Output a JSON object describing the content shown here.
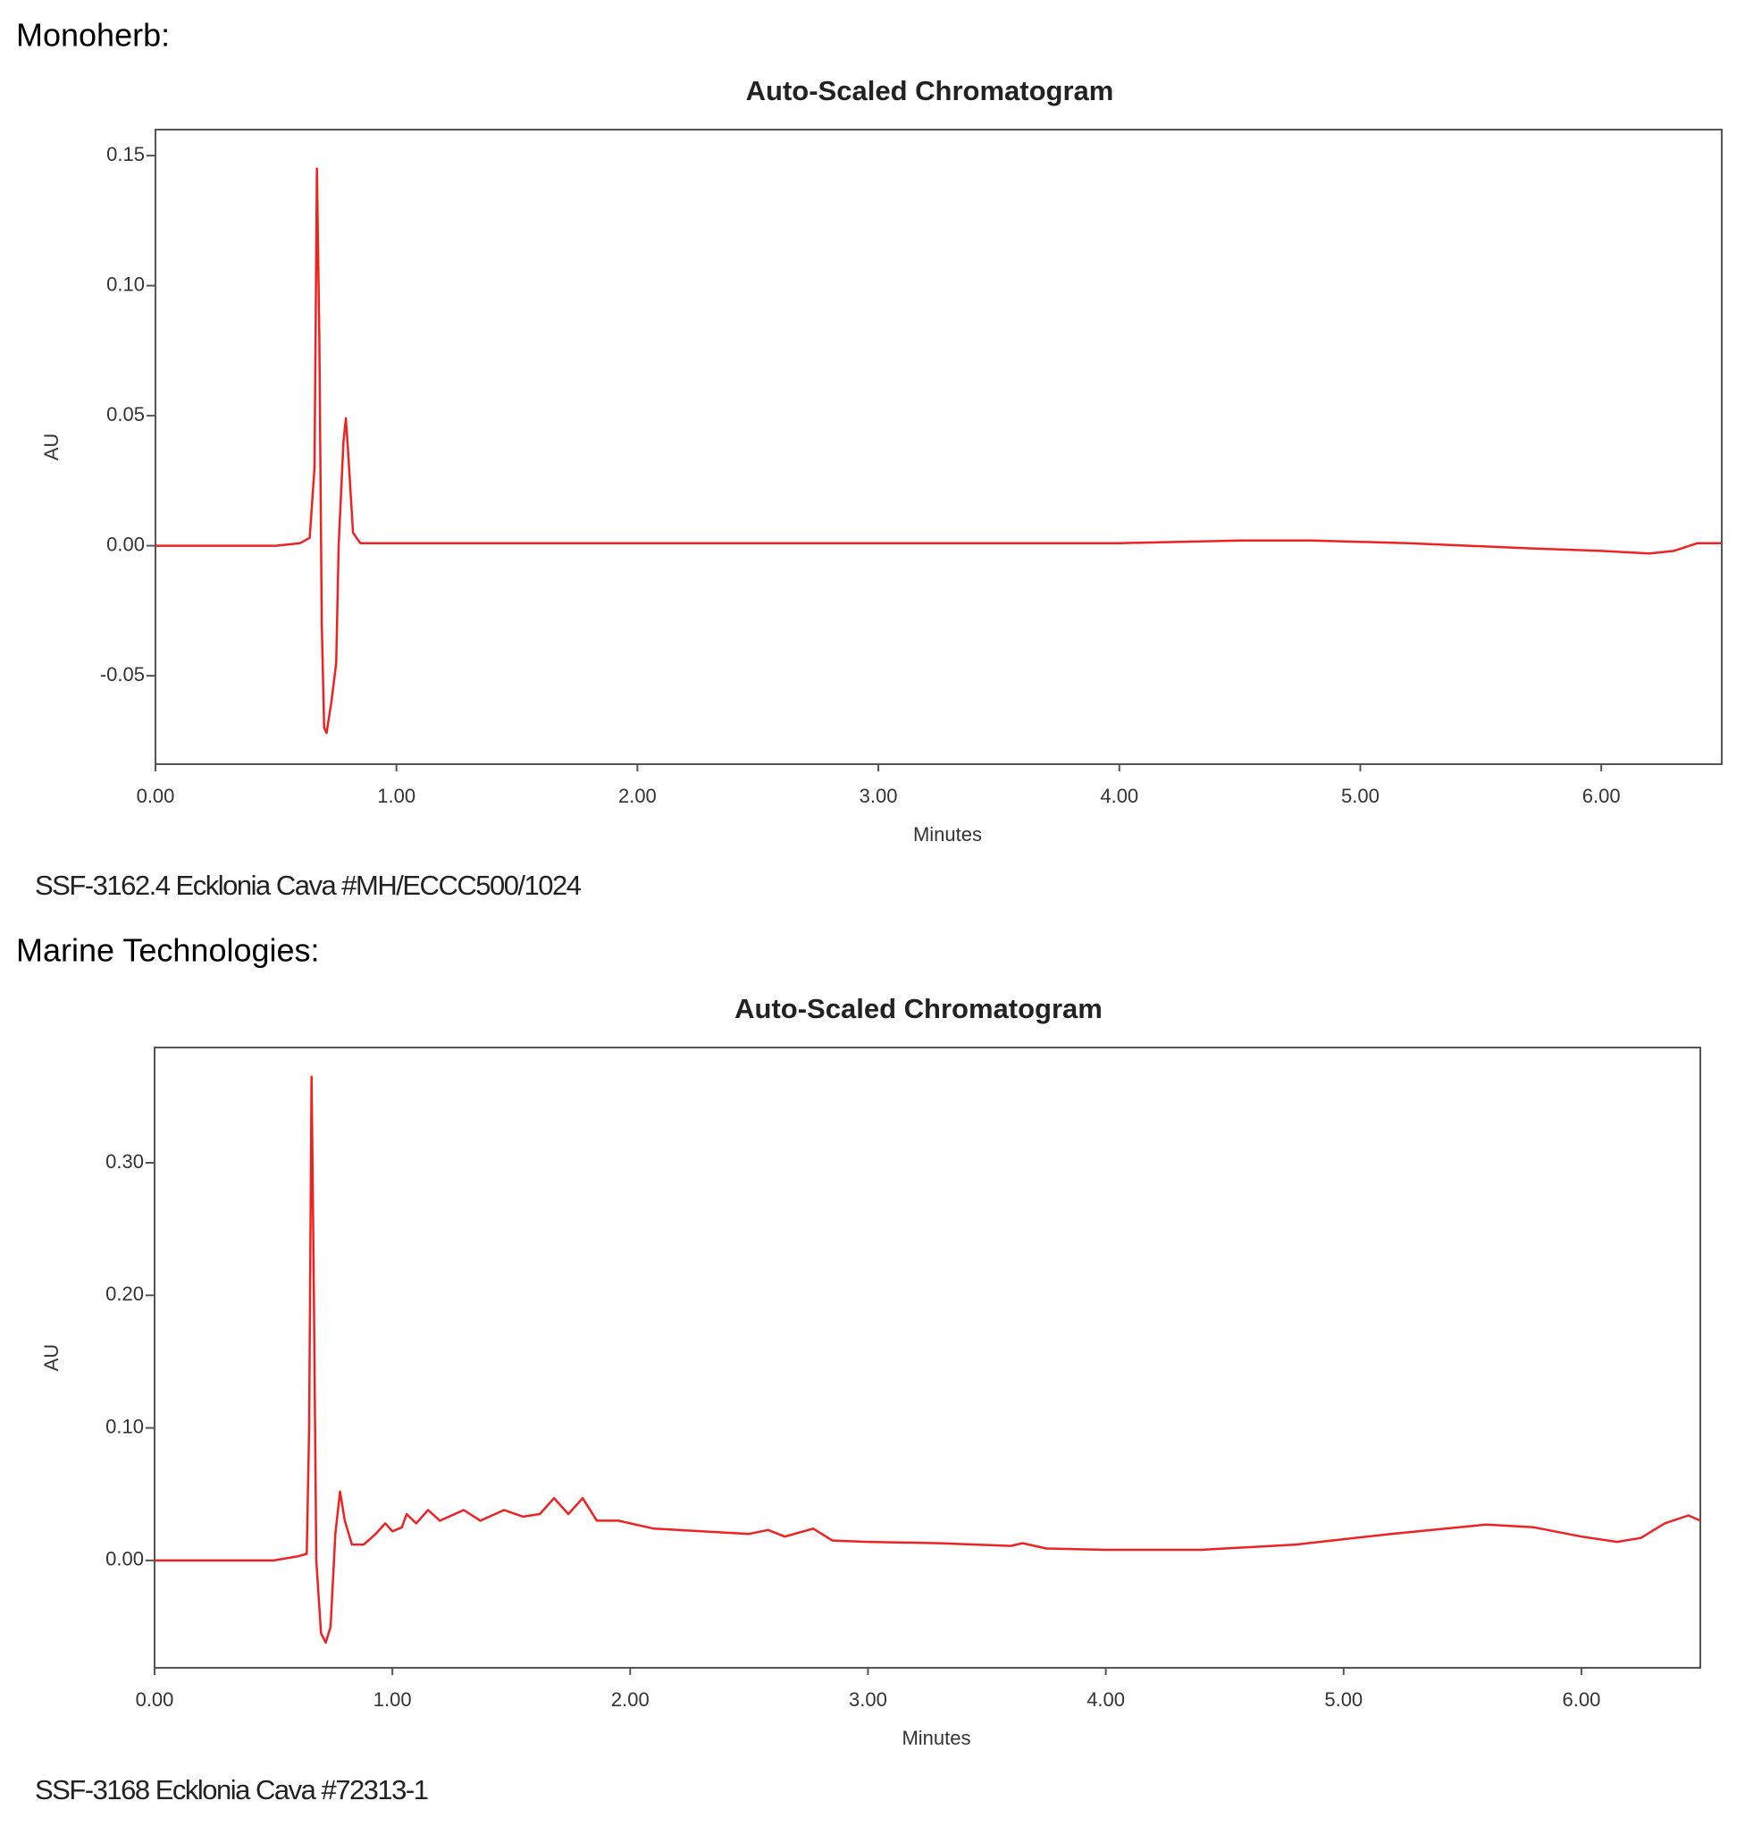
{
  "sections": [
    {
      "heading": "Monoherb:",
      "caption": "SSF-3162.4 Ecklonia Cava #MH/ECCC500/1024"
    },
    {
      "heading": "Marine Technologies:",
      "caption": "SSF-3168 Ecklonia Cava #72313-1"
    }
  ],
  "chart_data": [
    {
      "type": "line",
      "title": "Auto-Scaled Chromatogram",
      "xlabel": "Minutes",
      "ylabel": "AU",
      "color": "#ee2222",
      "xlim": [
        0,
        6.5
      ],
      "ylim": [
        -0.084,
        0.16
      ],
      "xticks": [
        {
          "value": 0,
          "label": "0.00"
        },
        {
          "value": 1,
          "label": "1.00"
        },
        {
          "value": 2,
          "label": "2.00"
        },
        {
          "value": 3,
          "label": "3.00"
        },
        {
          "value": 4,
          "label": "4.00"
        },
        {
          "value": 5,
          "label": "5.00"
        },
        {
          "value": 6,
          "label": "6.00"
        }
      ],
      "yticks": [
        -0.05,
        {
          "value": 0,
          "label": "0.00"
        },
        0.05,
        {
          "value": 0.1,
          "label": "0.10"
        },
        0.15
      ],
      "x": [
        0,
        0.5,
        0.6,
        0.64,
        0.66,
        0.67,
        0.68,
        0.69,
        0.7,
        0.71,
        0.73,
        0.75,
        0.76,
        0.78,
        0.79,
        0.8,
        0.82,
        0.85,
        1.5,
        3,
        4,
        4.5,
        4.8,
        5.2,
        5.7,
        6.0,
        6.2,
        6.3,
        6.4,
        6.5
      ],
      "values": [
        0,
        0,
        0.001,
        0.003,
        0.03,
        0.145,
        0.08,
        -0.03,
        -0.07,
        -0.072,
        -0.06,
        -0.045,
        0,
        0.04,
        0.049,
        0.035,
        0.005,
        0.001,
        0.001,
        0.001,
        0.001,
        0.002,
        0.002,
        0.001,
        -0.001,
        -0.002,
        -0.003,
        -0.002,
        0.001,
        0.001
      ]
    },
    {
      "type": "line",
      "title": "Auto-Scaled Chromatogram",
      "xlabel": "Minutes",
      "ylabel": "AU",
      "color": "#ee2222",
      "xlim": [
        0,
        6.5
      ],
      "ylim": [
        -0.081,
        0.387
      ],
      "xticks": [
        {
          "value": 0,
          "label": "0.00"
        },
        {
          "value": 1,
          "label": "1.00"
        },
        {
          "value": 2,
          "label": "2.00"
        },
        {
          "value": 3,
          "label": "3.00"
        },
        {
          "value": 4,
          "label": "4.00"
        },
        {
          "value": 5,
          "label": "5.00"
        },
        {
          "value": 6,
          "label": "6.00"
        }
      ],
      "yticks": [
        {
          "value": 0,
          "label": "0.00"
        },
        {
          "value": 0.1,
          "label": "0.10"
        },
        {
          "value": 0.2,
          "label": "0.20"
        },
        {
          "value": 0.3,
          "label": "0.30"
        }
      ],
      "x": [
        0,
        0.3,
        0.5,
        0.6,
        0.64,
        0.65,
        0.66,
        0.67,
        0.68,
        0.7,
        0.72,
        0.74,
        0.76,
        0.78,
        0.8,
        0.83,
        0.88,
        0.93,
        0.97,
        1.0,
        1.04,
        1.06,
        1.1,
        1.15,
        1.2,
        1.3,
        1.37,
        1.47,
        1.55,
        1.62,
        1.68,
        1.74,
        1.8,
        1.86,
        1.95,
        2.1,
        2.3,
        2.5,
        2.58,
        2.65,
        2.77,
        2.85,
        3.0,
        3.3,
        3.6,
        3.65,
        3.75,
        4.0,
        4.4,
        4.8,
        5.2,
        5.6,
        5.8,
        6.0,
        6.15,
        6.25,
        6.35,
        6.45,
        6.5
      ],
      "values": [
        0,
        0,
        0,
        0.003,
        0.005,
        0.1,
        0.365,
        0.2,
        0,
        -0.055,
        -0.062,
        -0.05,
        0.02,
        0.052,
        0.03,
        0.012,
        0.012,
        0.02,
        0.028,
        0.022,
        0.025,
        0.035,
        0.028,
        0.038,
        0.03,
        0.038,
        0.03,
        0.038,
        0.033,
        0.035,
        0.047,
        0.035,
        0.047,
        0.03,
        0.03,
        0.024,
        0.022,
        0.02,
        0.023,
        0.018,
        0.024,
        0.015,
        0.014,
        0.013,
        0.011,
        0.013,
        0.009,
        0.008,
        0.008,
        0.012,
        0.02,
        0.027,
        0.025,
        0.018,
        0.014,
        0.017,
        0.028,
        0.034,
        0.03
      ]
    }
  ]
}
